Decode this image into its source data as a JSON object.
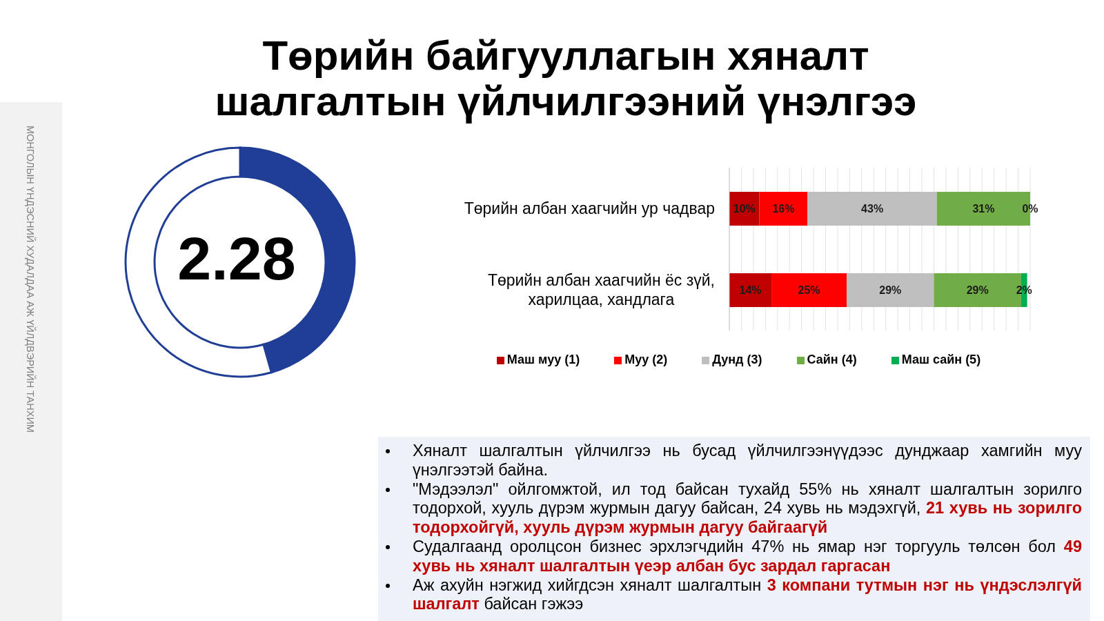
{
  "chart_data": [
    {
      "type": "donut",
      "title": "Төрийн байгууллагын хяналт шалгалтын үйлчилгээний үнэлгээ",
      "categories": [
        null,
        null
      ],
      "values": [
        45.6,
        54.4
      ],
      "colors": [
        "#203e96",
        "#ffffff"
      ],
      "annotations": [
        "2.28",
        "МОНГОЛЫН ҮНДЭСНИЙ ХУДАЛДАА АЖ ҮЙЛДВЭРИЙН ТАНХИМ"
      ]
    },
    {
      "type": "bar",
      "orientation": "horizontal",
      "stacked": true,
      "categories": [
        "Төрийн албан хаагчийн ур чадвар",
        "Төрийн албан хаагчийн ёс зүй, харилцаа, хандлага"
      ],
      "series": [
        {
          "name": "Маш муу (1)",
          "color": "#c00000",
          "values": [
            10,
            14
          ],
          "value_labels": [
            "10%",
            "14%"
          ]
        },
        {
          "name": "Муу (2)",
          "color": "#ff0000",
          "values": [
            16,
            25
          ],
          "value_labels": [
            "16%",
            "25%"
          ]
        },
        {
          "name": "Дунд (3)",
          "color": "#bfbfbf",
          "values": [
            43,
            29
          ],
          "value_labels": [
            "43%",
            "29%"
          ]
        },
        {
          "name": "Сайн (4)",
          "color": "#70ad47",
          "values": [
            31,
            29
          ],
          "value_labels": [
            "31%",
            "29%"
          ]
        },
        {
          "name": "Маш сайн (5)",
          "color": "#00b050",
          "values": [
            0,
            2
          ],
          "value_labels": [
            "0%",
            "2%"
          ]
        }
      ],
      "xlim": [
        0,
        100
      ],
      "xticks": [
        {
          "value": 0,
          "label": null
        },
        {
          "value": 4,
          "label": null
        },
        {
          "value": 8,
          "label": null
        },
        {
          "value": 12,
          "label": null
        },
        {
          "value": 16,
          "label": null
        },
        {
          "value": 20,
          "label": null
        },
        {
          "value": 24,
          "label": null
        },
        {
          "value": 28,
          "label": null
        },
        {
          "value": 32,
          "label": null
        },
        {
          "value": 36,
          "label": null
        },
        {
          "value": 40,
          "label": null
        },
        {
          "value": 44,
          "label": null
        },
        {
          "value": 48,
          "label": null
        },
        {
          "value": 52,
          "label": null
        },
        {
          "value": 56,
          "label": null
        },
        {
          "value": 60,
          "label": null
        },
        {
          "value": 64,
          "label": null
        },
        {
          "value": 68,
          "label": null
        },
        {
          "value": 72,
          "label": null
        },
        {
          "value": 76,
          "label": null
        },
        {
          "value": 80,
          "label": null
        },
        {
          "value": 84,
          "label": null
        },
        {
          "value": 88,
          "label": null
        },
        {
          "value": 92,
          "label": null
        },
        {
          "value": 96,
          "label": null
        },
        {
          "value": 100,
          "label": null
        }
      ],
      "grid": "x",
      "tick_labels": "y",
      "legend": "bottom"
    },
    {
      "type": "other",
      "annotations": [
        "Хяналт шалгалтын үйлчилгээ нь бусад үйлчилгээнүүдээс дунджаар хамгийн муу үнэлгээтэй байна.",
        "\"Мэдээлэл\" ойлгомжтой, ил тод байсан тухайд 55% нь хяналт шалгалтын зорилго тодорхой, хууль дүрэм журмын дагуу байсан, 24 хувь нь мэдэхгүй,",
        "21 хувь нь зорилго тодорхойгүй, хууль дүрэм журмын дагуу байгаагүй",
        "Судалгаанд оролцсон бизнес эрхлэгчдийн 47% нь ямар нэг торгууль төлсөн бол",
        "49 хувь нь хяналт шалгалтын үеэр албан бус зардал гаргасан",
        "Аж ахуйн нэгжид хийгдсэн хяналт шалгалтын",
        "3 компани тутмын нэг нь үндэслэлгүй шалгалт",
        "байсан гэжээ"
      ]
    }
  ]
}
